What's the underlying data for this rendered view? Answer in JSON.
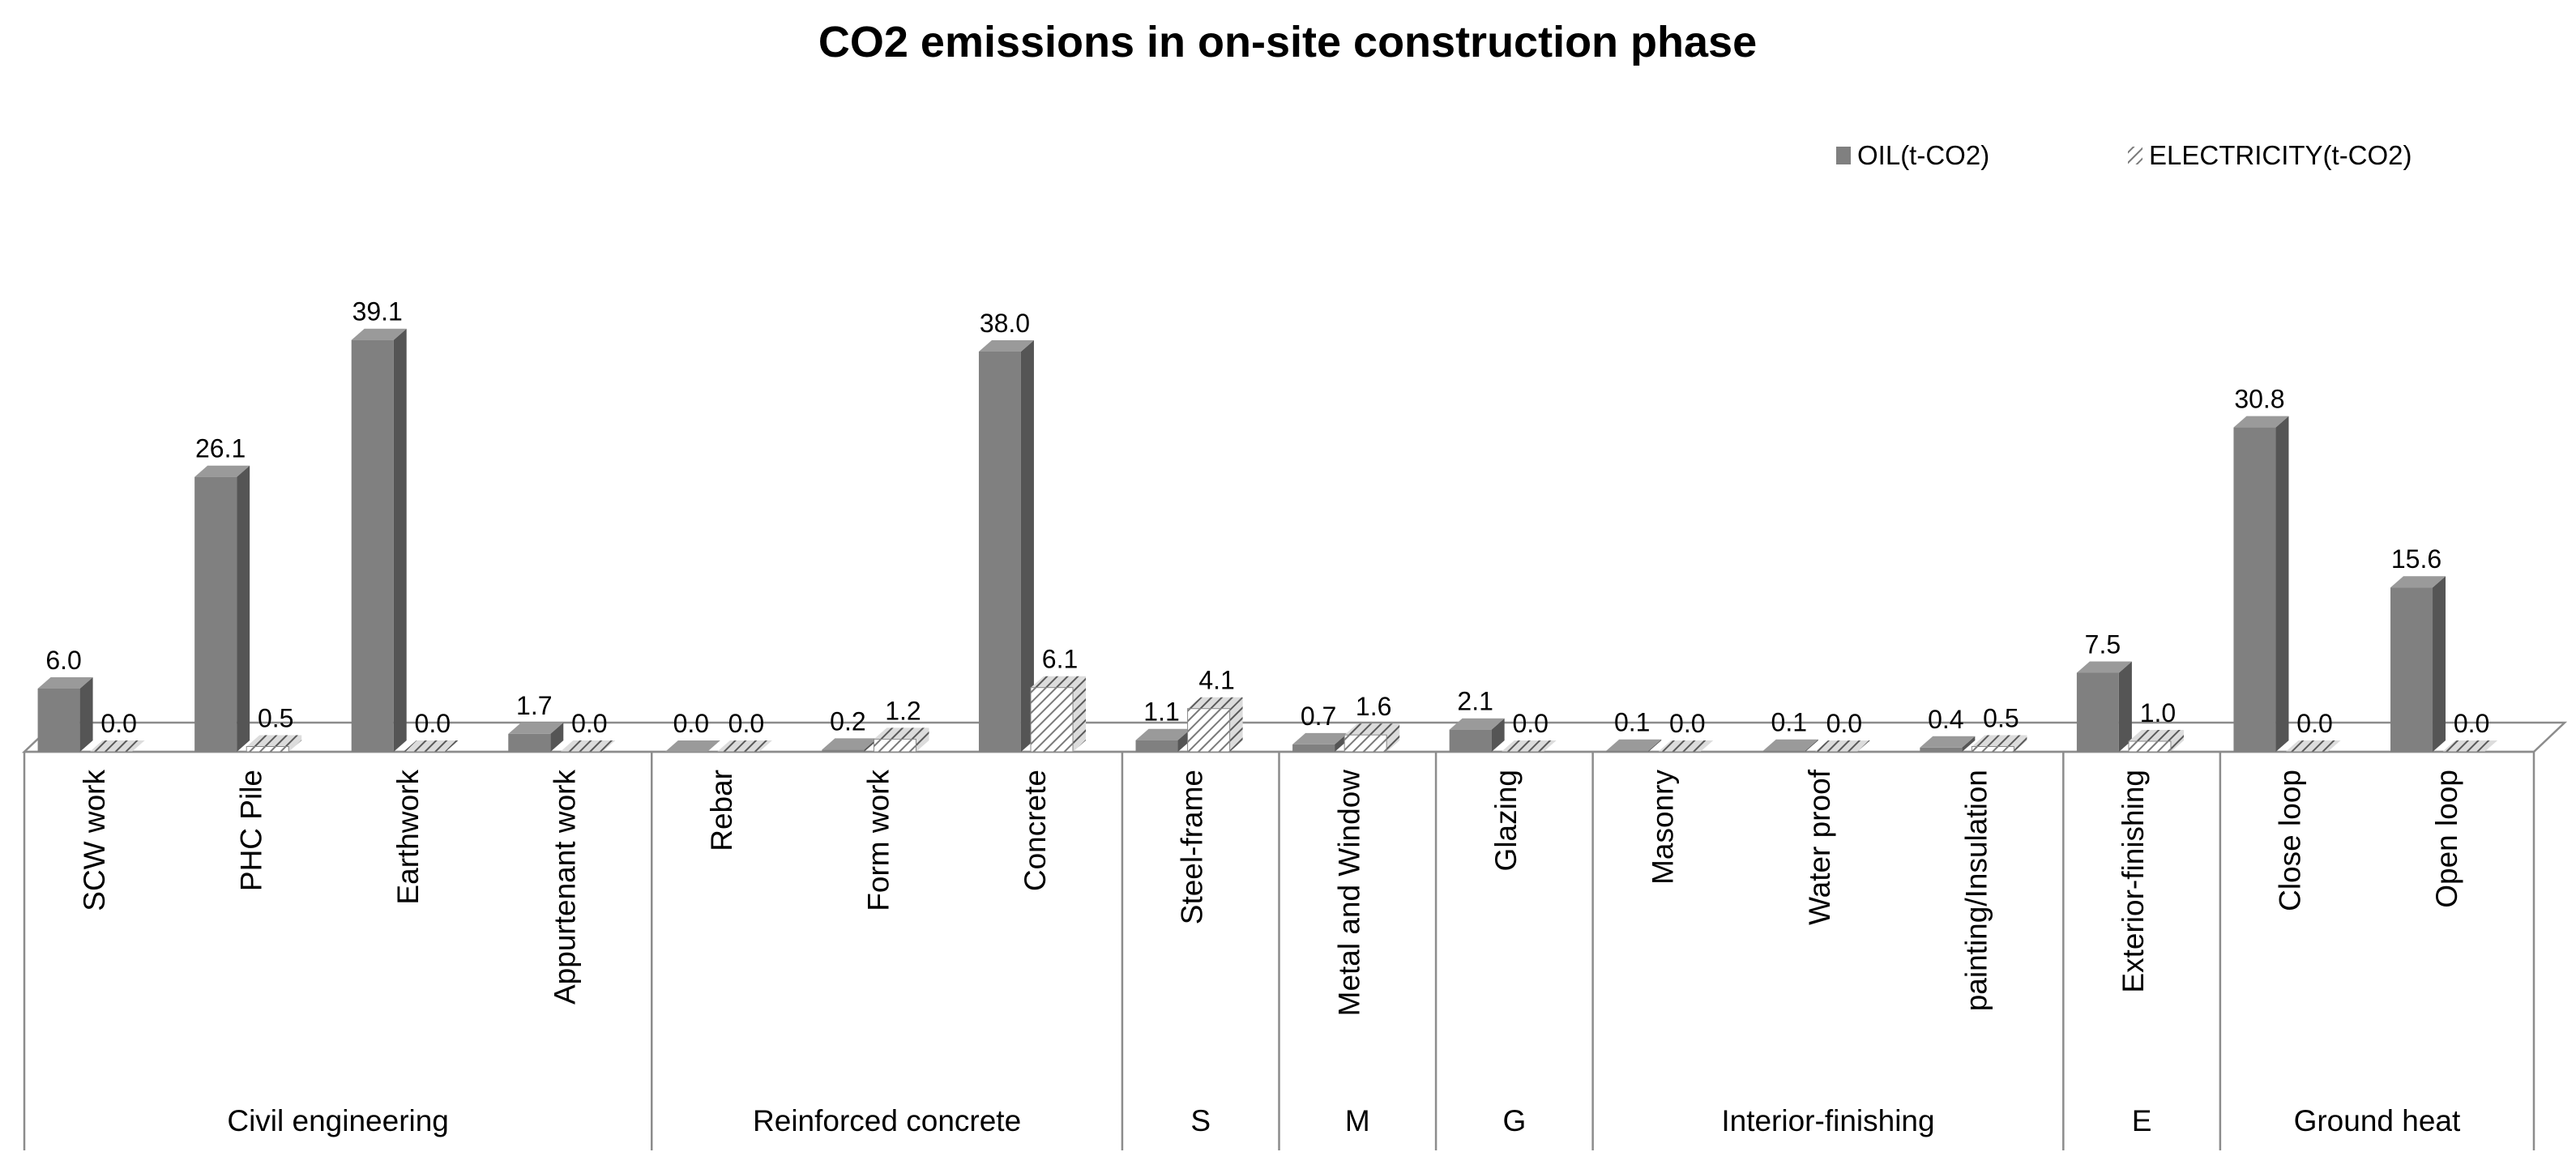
{
  "chart_data": {
    "type": "bar",
    "title": "CO2 emissions in on-site construction phase",
    "legend": {
      "placement": "top-right",
      "entries": [
        "OIL(t-CO2)",
        "ELECTRICITY(t-CO2)"
      ]
    },
    "categories": [
      "SCW work",
      "PHC Pile",
      "Earthwork",
      "Appurtenant work",
      "Rebar",
      "Form work",
      "Concrete",
      "Steel-frame",
      "Metal and Window",
      "Glazing",
      "Masonry",
      "Water proof",
      "painting/Insulation",
      "Exterior-finishing",
      "Close loop",
      "Open loop"
    ],
    "groups": [
      {
        "label": "Civil engineering",
        "count": 4
      },
      {
        "label": "Reinforced concrete",
        "count": 3
      },
      {
        "label": "S",
        "count": 1
      },
      {
        "label": "M",
        "count": 1
      },
      {
        "label": "G",
        "count": 1
      },
      {
        "label": "Interior-finishing",
        "count": 3
      },
      {
        "label": "E",
        "count": 1
      },
      {
        "label": "Ground heat",
        "count": 2
      }
    ],
    "series": [
      {
        "name": "OIL(t-CO2)",
        "values": [
          6.0,
          26.1,
          39.1,
          1.7,
          0.0,
          0.2,
          38.0,
          1.1,
          0.7,
          2.1,
          0.1,
          0.1,
          0.4,
          7.5,
          30.8,
          15.6
        ],
        "labels": [
          "6.0",
          "26.1",
          "39.1",
          "1.7",
          "0.0",
          "0.2",
          "38.0",
          "1.1",
          "0.7",
          "2.1",
          "0.1",
          "0.1",
          "0.4",
          "7.5",
          "30.8",
          "15.6"
        ]
      },
      {
        "name": "ELECTRICITY(t-CO2)",
        "values": [
          0.0,
          0.5,
          0.0,
          0.0,
          0.0,
          1.2,
          6.1,
          4.1,
          1.6,
          0.0,
          0.0,
          0.0,
          0.5,
          1.0,
          0.0,
          0.0
        ],
        "labels": [
          "0.0",
          "0.5",
          "0.0",
          "0.0",
          "0.0",
          "1.2",
          "6.1",
          "4.1",
          "1.6",
          "0.0",
          "0.0",
          "0.0",
          "0.5",
          "1.0",
          "0.0",
          "0.0"
        ]
      }
    ],
    "ylim": [
      0,
      40
    ],
    "grid": false,
    "colors": {
      "oil_front": "#808080",
      "oil_side": "#555555",
      "oil_top": "#9a9a9a",
      "elec_line": "#777777",
      "elec_bg": "#ffffff",
      "axis": "#8c8c8c"
    }
  }
}
